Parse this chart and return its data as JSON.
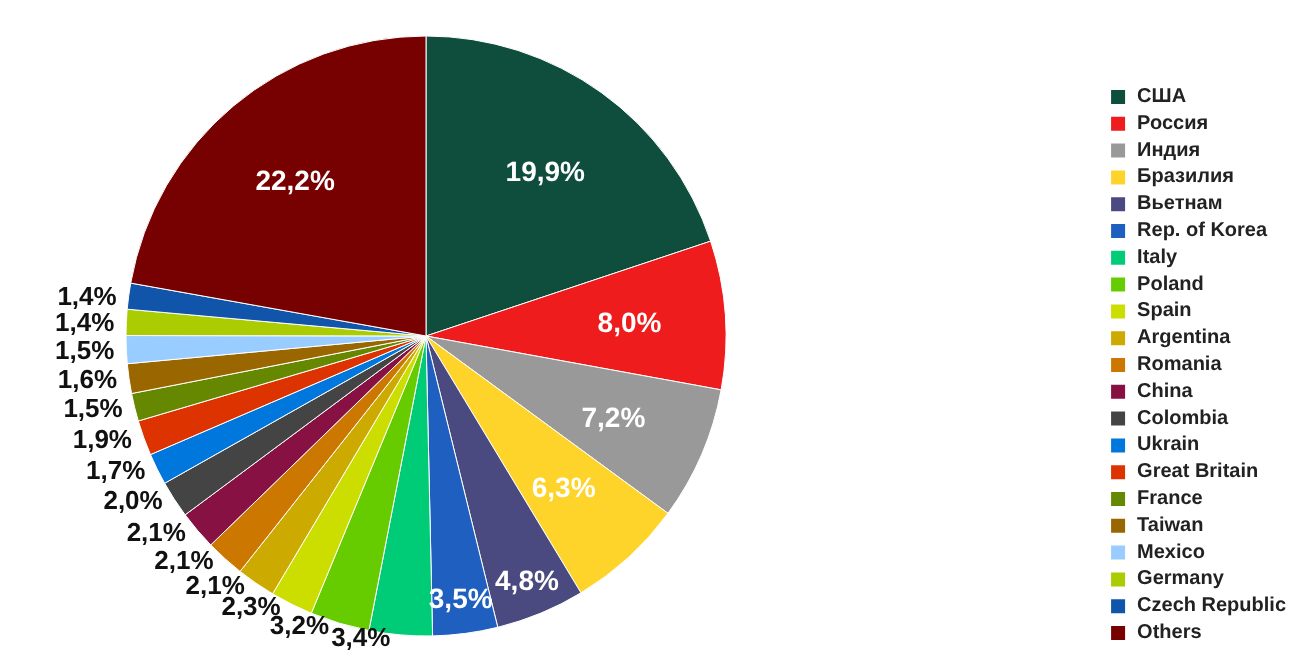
{
  "chart_data": {
    "type": "pie",
    "categories": [
      "США",
      "Россия",
      "Индия",
      "Бразилия",
      "Вьетнам",
      "Rep. of Korea",
      "Italy",
      "Poland",
      "Spain",
      "Argentina",
      "Romania",
      "China",
      "Colombia",
      "Ukrain",
      "Great Britain",
      "France",
      "Taiwan",
      "Mexico",
      "Germany",
      "Czech Republic",
      "Others"
    ],
    "values": [
      19.9,
      8.0,
      7.2,
      6.3,
      4.8,
      3.5,
      3.4,
      3.2,
      2.3,
      2.1,
      2.1,
      2.1,
      2.0,
      1.7,
      1.9,
      1.5,
      1.6,
      1.5,
      1.4,
      1.4,
      22.2
    ],
    "value_labels": [
      "19,9%",
      "8,0%",
      "7,2%",
      "6,3%",
      "4,8%",
      "3,5%",
      "3,4%",
      "3,2%",
      "2,3%",
      "2,1%",
      "2,1%",
      "2,1%",
      "2,0%",
      "1,7%",
      "1,9%",
      "1,5%",
      "1,6%",
      "1,5%",
      "1,4%",
      "1,4%",
      "22,2%"
    ],
    "colors": [
      "#0f4d3c",
      "#ee1c1c",
      "#999999",
      "#ffd42a",
      "#4a4a80",
      "#1f5fc0",
      "#00cc77",
      "#66cc00",
      "#ccdd00",
      "#ccaa00",
      "#cc7700",
      "#881144",
      "#444444",
      "#0077dd",
      "#dd3300",
      "#668800",
      "#996600",
      "#99ccff",
      "#aacc00",
      "#1155aa",
      "#770000"
    ],
    "legend": "right"
  }
}
